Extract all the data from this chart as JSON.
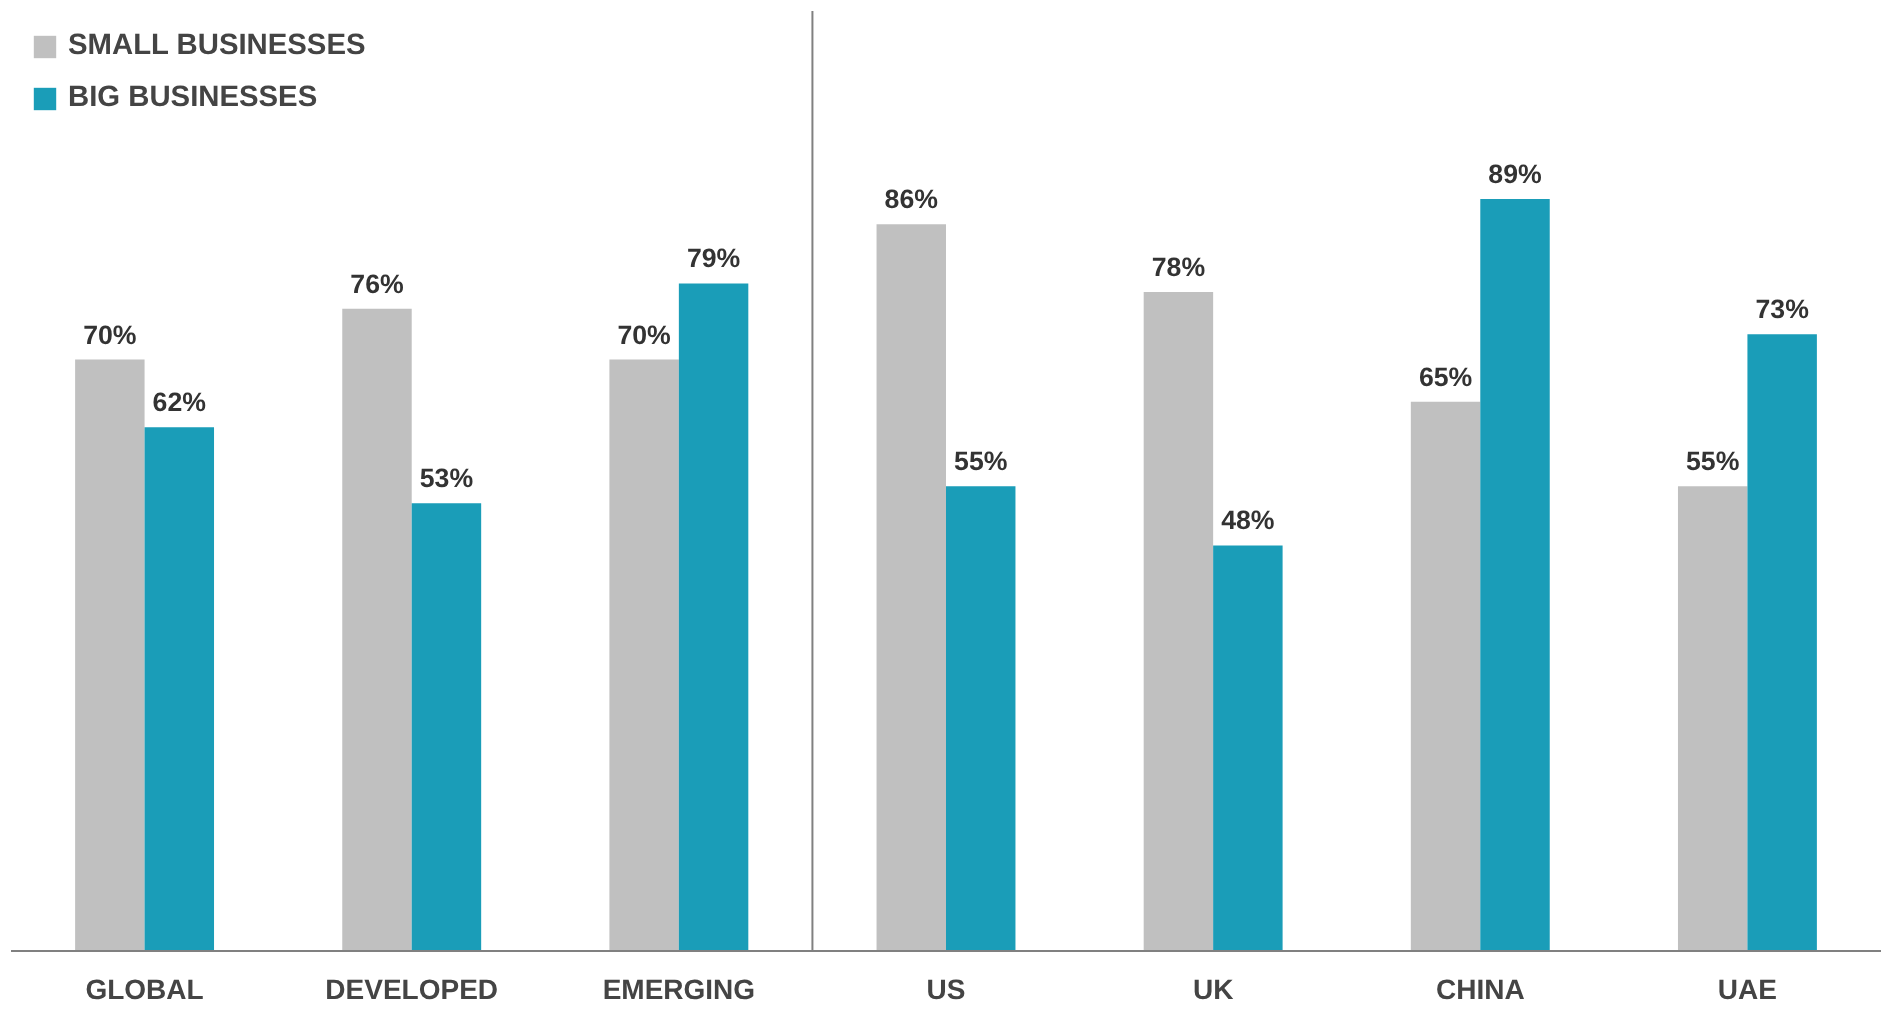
{
  "chart_data": {
    "type": "bar",
    "categories": [
      "GLOBAL",
      "DEVELOPED",
      "EMERGING",
      "US",
      "UK",
      "CHINA",
      "UAE"
    ],
    "series": [
      {
        "name": "SMALL BUSINESSES",
        "color": "#c0c0c0",
        "values": [
          70,
          76,
          70,
          86,
          78,
          65,
          55
        ],
        "value_labels": [
          "70%",
          "76%",
          "70%",
          "86%",
          "78%",
          "65%",
          "55%"
        ]
      },
      {
        "name": "BIG BUSINESSES",
        "color": "#1a9db8",
        "values": [
          62,
          53,
          79,
          55,
          48,
          89,
          73
        ],
        "value_labels": [
          "62%",
          "53%",
          "79%",
          "55%",
          "48%",
          "89%",
          "73%"
        ]
      }
    ],
    "legend": "top left",
    "grid": false
  }
}
